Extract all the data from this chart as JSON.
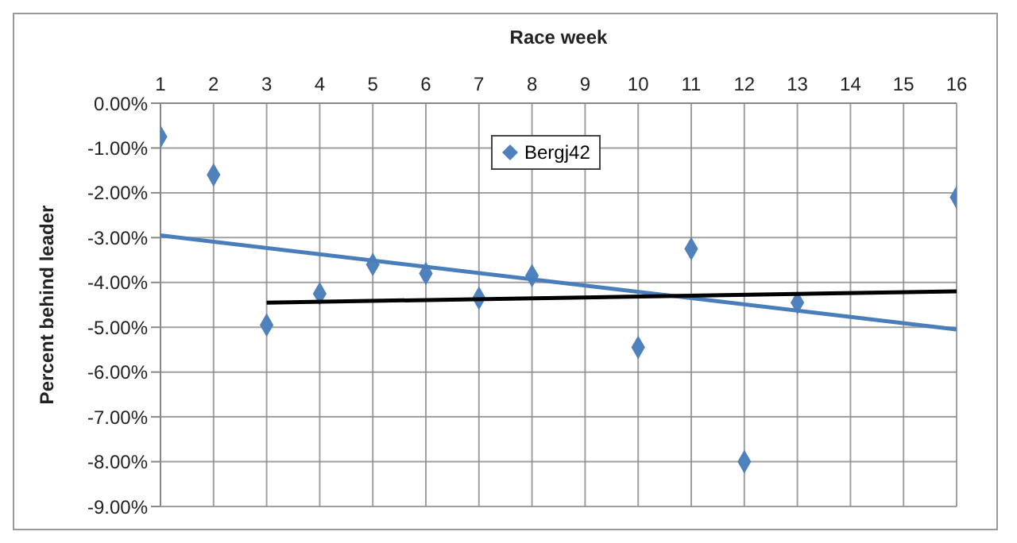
{
  "chart_data": {
    "type": "scatter",
    "xlabel": "Race week",
    "ylabel": "Percent behind leader",
    "x": [
      1,
      2,
      3,
      4,
      5,
      6,
      7,
      8,
      9,
      10,
      11,
      12,
      13,
      14,
      15,
      16
    ],
    "series": [
      {
        "name": "Bergj42",
        "color": "#4f81bd",
        "marker": "diamond",
        "values": [
          -0.75,
          -1.6,
          -4.95,
          -4.25,
          -3.6,
          -3.8,
          -4.35,
          -3.85,
          null,
          -5.45,
          -3.25,
          -8.0,
          -4.45,
          null,
          null,
          -2.1
        ]
      },
      {
        "type": "line",
        "color": "#4a7ebb",
        "x": [
          1,
          16
        ],
        "values": [
          -2.95,
          -5.05
        ]
      },
      {
        "type": "line",
        "color": "#000000",
        "x": [
          3,
          16
        ],
        "values": [
          -4.45,
          -4.2
        ]
      }
    ],
    "xlim": [
      1,
      16
    ],
    "xticks": [
      1,
      2,
      3,
      4,
      5,
      6,
      7,
      8,
      9,
      10,
      11,
      12,
      13,
      14,
      15,
      16
    ],
    "ylim": [
      -9,
      0
    ],
    "yticks": [
      {
        "value": 0,
        "label": "0.00%"
      },
      {
        "value": -1,
        "label": "-1.00%"
      },
      {
        "value": -2,
        "label": "-2.00%"
      },
      {
        "value": -3,
        "label": "-3.00%"
      },
      {
        "value": -4,
        "label": "-4.00%"
      },
      {
        "value": -5,
        "label": "-5.00%"
      },
      {
        "value": -6,
        "label": "-6.00%"
      },
      {
        "value": -7,
        "label": "-7.00%"
      },
      {
        "value": -8,
        "label": "-8.00%"
      },
      {
        "value": -9,
        "label": "-9.00%"
      }
    ],
    "grid": true,
    "legend": "top"
  }
}
